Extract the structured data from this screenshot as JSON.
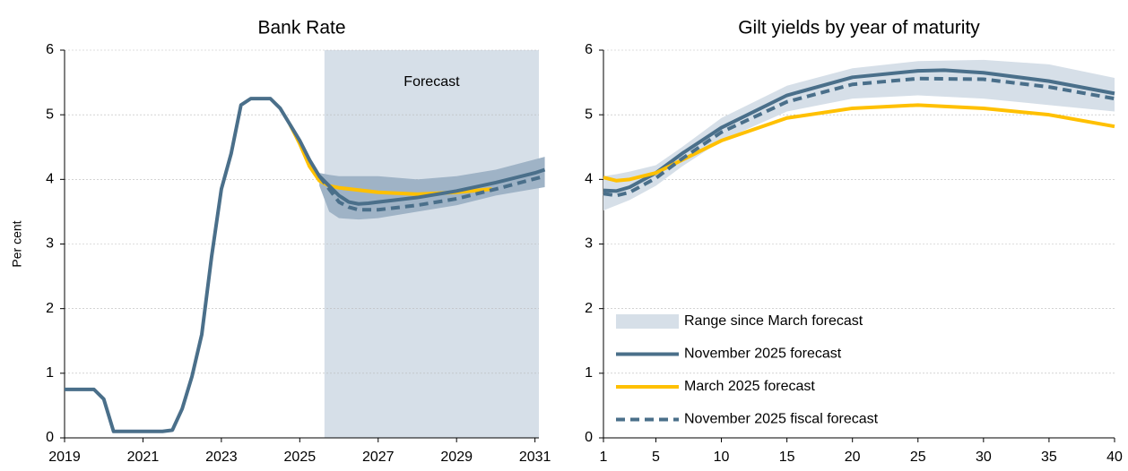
{
  "chart_data": [
    {
      "type": "line",
      "title": "Bank Rate",
      "ylabel": "Per cent",
      "xlim": [
        2019,
        2031.1
      ],
      "xticks": [
        2019,
        2021,
        2023,
        2025,
        2027,
        2029,
        2031
      ],
      "ylim": [
        0,
        6
      ],
      "yticks": [
        0,
        1,
        2,
        3,
        4,
        5,
        6
      ],
      "grid": true,
      "shade": {
        "label": "Forecast",
        "start": 2025.63,
        "color": "#d6dfe8"
      },
      "band": {
        "color": "#9fb3c6",
        "x": [
          2025.5,
          2025.75,
          2026,
          2026.5,
          2027,
          2028,
          2029,
          2030,
          2031.25
        ],
        "lower": [
          3.9,
          3.5,
          3.4,
          3.38,
          3.4,
          3.5,
          3.6,
          3.75,
          3.88
        ],
        "upper": [
          4.1,
          4.07,
          4.05,
          4.05,
          4.05,
          4.0,
          4.05,
          4.15,
          4.35
        ]
      },
      "series": [
        {
          "color": "#ffc000",
          "dash": false,
          "x": [
            2024.75,
            2025,
            2025.25,
            2025.5,
            2025.75,
            2026,
            2027,
            2028,
            2029,
            2029.9
          ],
          "values": [
            4.85,
            4.55,
            4.2,
            3.98,
            3.9,
            3.87,
            3.8,
            3.77,
            3.8,
            3.85
          ]
        },
        {
          "color": "#4a6f8a",
          "dash": true,
          "x": [
            2025.5,
            2025.75,
            2026,
            2026.25,
            2026.5,
            2027,
            2028,
            2029,
            2030,
            2031.25
          ],
          "values": [
            4.05,
            3.85,
            3.65,
            3.57,
            3.53,
            3.53,
            3.6,
            3.7,
            3.85,
            4.05
          ]
        },
        {
          "color": "#4a6f8a",
          "dash": false,
          "x": [
            2019,
            2019.25,
            2019.5,
            2019.75,
            2020,
            2020.25,
            2020.5,
            2020.75,
            2021,
            2021.25,
            2021.5,
            2021.75,
            2022,
            2022.25,
            2022.5,
            2022.75,
            2023,
            2023.25,
            2023.5,
            2023.75,
            2024,
            2024.25,
            2024.5,
            2024.75,
            2025,
            2025.25,
            2025.5,
            2025.75,
            2026,
            2026.25,
            2026.5,
            2026.75,
            2027,
            2028,
            2029,
            2030,
            2031,
            2031.25
          ],
          "values": [
            0.75,
            0.75,
            0.75,
            0.75,
            0.6,
            0.1,
            0.1,
            0.1,
            0.1,
            0.1,
            0.1,
            0.12,
            0.45,
            0.95,
            1.6,
            2.8,
            3.85,
            4.4,
            5.15,
            5.25,
            5.25,
            5.25,
            5.1,
            4.85,
            4.6,
            4.3,
            4.05,
            3.9,
            3.75,
            3.65,
            3.62,
            3.63,
            3.65,
            3.72,
            3.82,
            3.95,
            4.1,
            4.15
          ]
        }
      ]
    },
    {
      "type": "line",
      "title": "Gilt yields by year of maturity",
      "xlim": [
        1,
        40
      ],
      "xticks": [
        1,
        5,
        10,
        15,
        20,
        25,
        30,
        35,
        40
      ],
      "ylim": [
        0,
        6
      ],
      "yticks": [
        0,
        1,
        2,
        3,
        4,
        5,
        6
      ],
      "grid": true,
      "band": {
        "name": "Range since March forecast",
        "color": "#d6dfe8",
        "x": [
          1,
          2,
          3,
          5,
          7,
          10,
          15,
          20,
          25,
          30,
          35,
          40
        ],
        "lower": [
          3.52,
          3.6,
          3.68,
          3.9,
          4.2,
          4.6,
          5.05,
          5.25,
          5.3,
          5.25,
          5.15,
          5.05
        ],
        "upper": [
          4.05,
          4.08,
          4.12,
          4.22,
          4.5,
          4.95,
          5.45,
          5.72,
          5.83,
          5.85,
          5.78,
          5.57
        ]
      },
      "series": [
        {
          "name": "November 2025 forecast",
          "color": "#4a6f8a",
          "dash": false,
          "x": [
            1,
            2,
            3,
            5,
            7,
            10,
            15,
            20,
            25,
            27,
            30,
            35,
            40
          ],
          "values": [
            3.83,
            3.82,
            3.88,
            4.1,
            4.4,
            4.8,
            5.3,
            5.58,
            5.68,
            5.69,
            5.65,
            5.52,
            5.33
          ]
        },
        {
          "name": "March 2025 forecast",
          "color": "#ffc000",
          "dash": false,
          "x": [
            1,
            2,
            3,
            5,
            7,
            10,
            15,
            20,
            25,
            30,
            35,
            40
          ],
          "values": [
            4.03,
            3.98,
            4.0,
            4.1,
            4.3,
            4.6,
            4.95,
            5.1,
            5.15,
            5.1,
            5.0,
            4.82
          ]
        },
        {
          "name": "November 2025 fiscal forecast",
          "color": "#4a6f8a",
          "dash": true,
          "x": [
            1,
            2,
            3,
            5,
            7,
            10,
            15,
            20,
            25,
            30,
            35,
            40
          ],
          "values": [
            3.78,
            3.75,
            3.8,
            4.02,
            4.32,
            4.73,
            5.2,
            5.47,
            5.56,
            5.55,
            5.43,
            5.25
          ]
        }
      ]
    }
  ]
}
